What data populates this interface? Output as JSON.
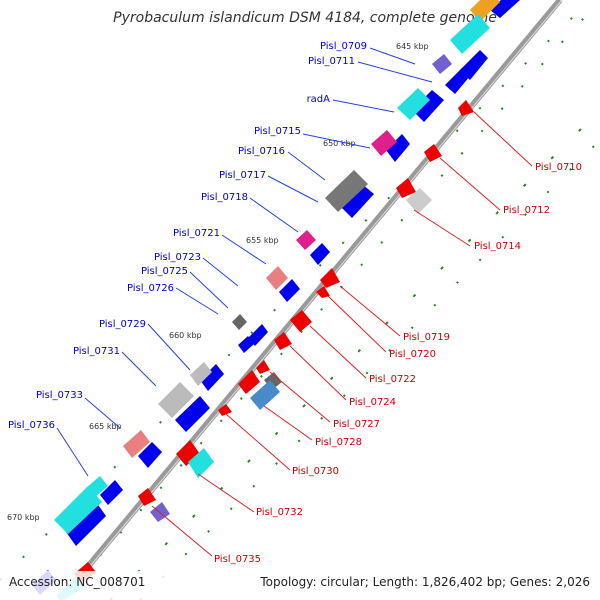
{
  "title": "Pyrobaculum islandicum DSM 4184, complete genome",
  "footer": {
    "accession": "Accession: NC_008701",
    "stats": "Topology: circular; Length: 1,826,402 bp; Genes: 2,026"
  },
  "kbp_marks": [
    "645 kbp",
    "650 kbp",
    "655 kbp",
    "660 kbp",
    "665 kbp",
    "670 kbp"
  ],
  "left_labels": [
    "Pisl_0709",
    "Pisl_0711",
    "radA",
    "Pisl_0715",
    "Pisl_0716",
    "Pisl_0717",
    "Pisl_0718",
    "Pisl_0721",
    "Pisl_0723",
    "Pisl_0725",
    "Pisl_0726",
    "Pisl_0729",
    "Pisl_0731",
    "Pisl_0733",
    "Pisl_0736"
  ],
  "right_labels": [
    "Pisl_0710",
    "Pisl_0712",
    "Pisl_0714",
    "Pisl_0719",
    "Pisl_0720",
    "Pisl_0722",
    "Pisl_0724",
    "Pisl_0727",
    "Pisl_0728",
    "Pisl_0730",
    "Pisl_0732",
    "Pisl_0735"
  ],
  "colors": {
    "backbone": "#888888",
    "forward_gene": "#0000ee",
    "reverse_gene": "#ee0000",
    "cyan": "#22e0e0",
    "gray": "#888888",
    "pink": "#e0208a",
    "salmon": "#e88080",
    "purple": "#7060d0",
    "orange": "#f0a020",
    "tick_green": "#228822"
  }
}
